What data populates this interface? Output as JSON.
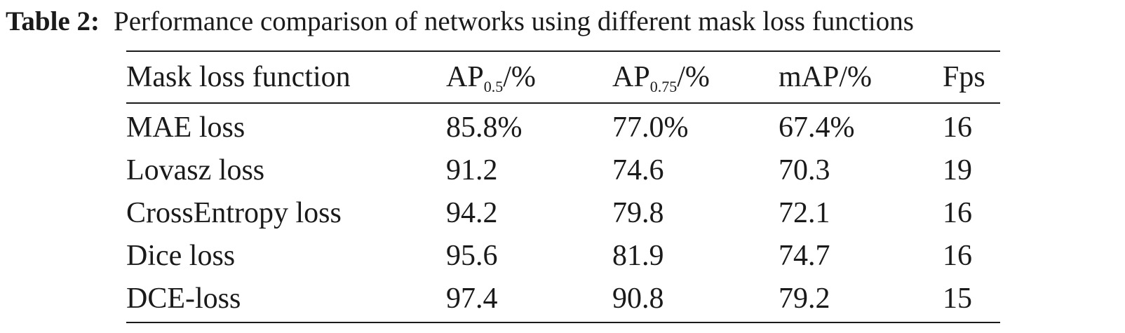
{
  "caption": {
    "label": "Table 2:",
    "text": "Performance comparison of networks using different mask loss functions"
  },
  "table": {
    "headers": [
      {
        "text": "Mask loss function"
      },
      {
        "base": "AP",
        "sub": "0.5",
        "suffix": "/%"
      },
      {
        "base": "AP",
        "sub": "0.75",
        "suffix": "/%"
      },
      {
        "text": "mAP/%"
      },
      {
        "text": "Fps"
      }
    ],
    "rows": [
      [
        "MAE loss",
        "85.8%",
        "77.0%",
        "67.4%",
        "16"
      ],
      [
        "Lovasz loss",
        "91.2",
        "74.6",
        "70.3",
        "19"
      ],
      [
        "CrossEntropy loss",
        "94.2",
        "79.8",
        "72.1",
        "16"
      ],
      [
        "Dice loss",
        "95.6",
        "81.9",
        "74.7",
        "16"
      ],
      [
        "DCE-loss",
        "97.4",
        "90.8",
        "79.2",
        "15"
      ]
    ]
  }
}
